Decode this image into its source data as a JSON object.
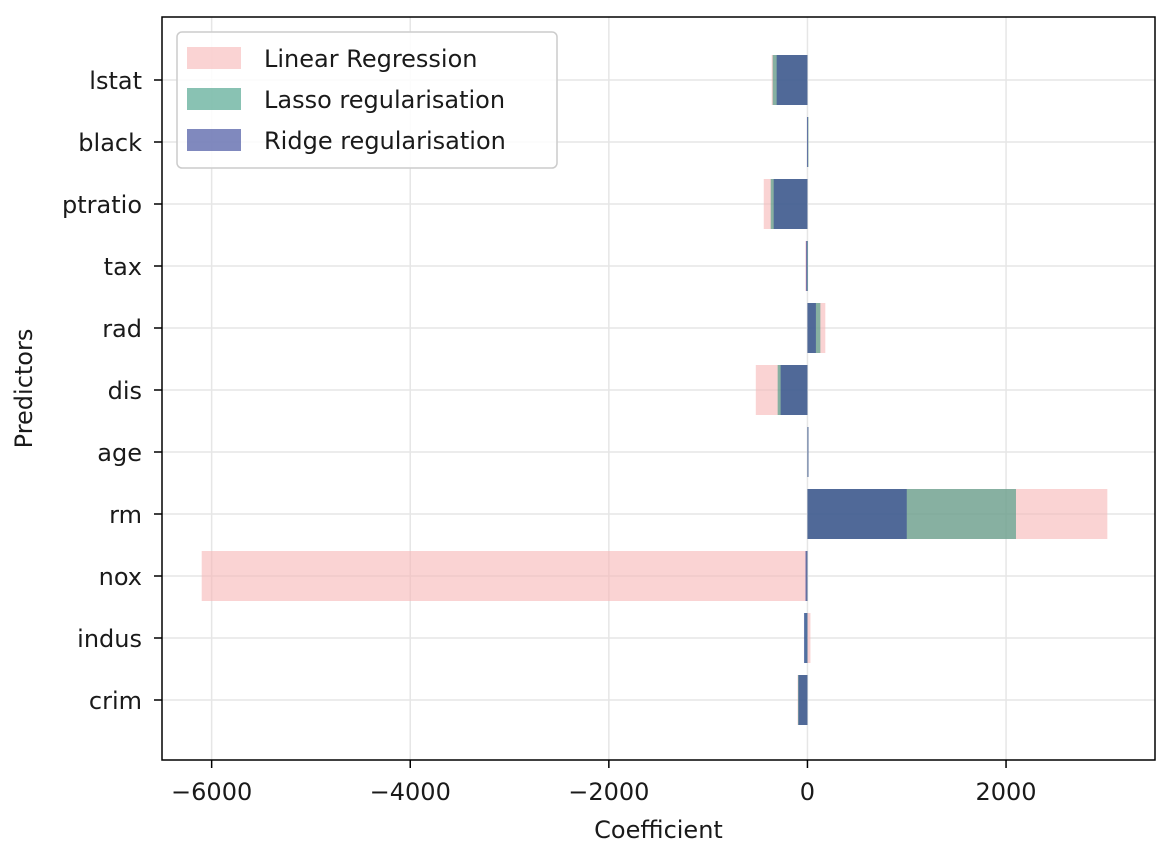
{
  "chart_data": {
    "type": "bar",
    "orientation": "horizontal",
    "xlabel": "Coefficient",
    "ylabel": "Predictors",
    "xlim": [
      -6500,
      3500
    ],
    "xticks": [
      -6000,
      -4000,
      -2000,
      0,
      2000
    ],
    "xtick_labels": [
      "−6000",
      "−4000",
      "−2000",
      "0",
      "2000"
    ],
    "grid": true,
    "legend_position": "top-left",
    "categories": [
      "crim",
      "indus",
      "nox",
      "rm",
      "age",
      "dis",
      "rad",
      "tax",
      "ptratio",
      "black",
      "lstat"
    ],
    "series": [
      {
        "name": "Linear Regression",
        "color": "#f7b6b6",
        "values": [
          -100,
          30,
          -6100,
          3020,
          5,
          -520,
          180,
          -20,
          -440,
          10,
          -360
        ]
      },
      {
        "name": "Lasso regularisation",
        "color": "#3a9a80",
        "values": [
          -95,
          -30,
          -10,
          2100,
          0,
          -300,
          130,
          -5,
          -370,
          10,
          -350
        ]
      },
      {
        "name": "Ridge regularisation",
        "color": "#2b3a93",
        "values": [
          -90,
          -35,
          -20,
          1000,
          10,
          -270,
          85,
          -15,
          -340,
          -5,
          -310
        ]
      }
    ]
  }
}
